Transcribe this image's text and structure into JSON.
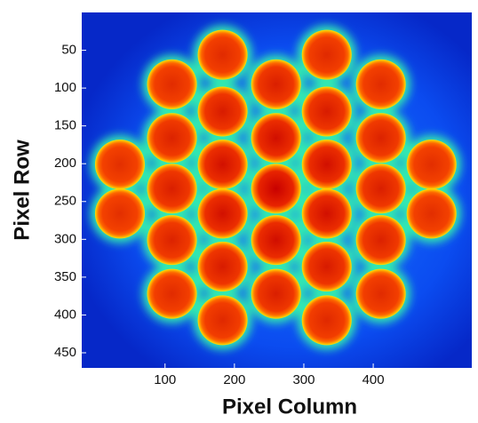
{
  "chart_data": {
    "type": "image",
    "x_label": "Pixel Column",
    "y_label": "Pixel Row",
    "xlim": [
      -20,
      542
    ],
    "ylim": [
      470,
      0
    ],
    "xticks": [
      100,
      200,
      300,
      400
    ],
    "yticks": [
      50,
      100,
      150,
      200,
      250,
      300,
      350,
      400,
      450
    ],
    "x": [
      35,
      35,
      110,
      110,
      110,
      110,
      110,
      183,
      183,
      183,
      183,
      183,
      183,
      260,
      260,
      260,
      260,
      260,
      333,
      333,
      333,
      333,
      333,
      333,
      411,
      411,
      411,
      411,
      411,
      484,
      484
    ],
    "y": [
      201,
      266,
      95,
      166,
      233,
      301,
      372,
      56,
      131,
      201,
      266,
      336,
      407,
      95,
      166,
      233,
      301,
      372,
      56,
      131,
      201,
      266,
      336,
      407,
      95,
      166,
      233,
      301,
      372,
      201,
      266
    ]
  }
}
